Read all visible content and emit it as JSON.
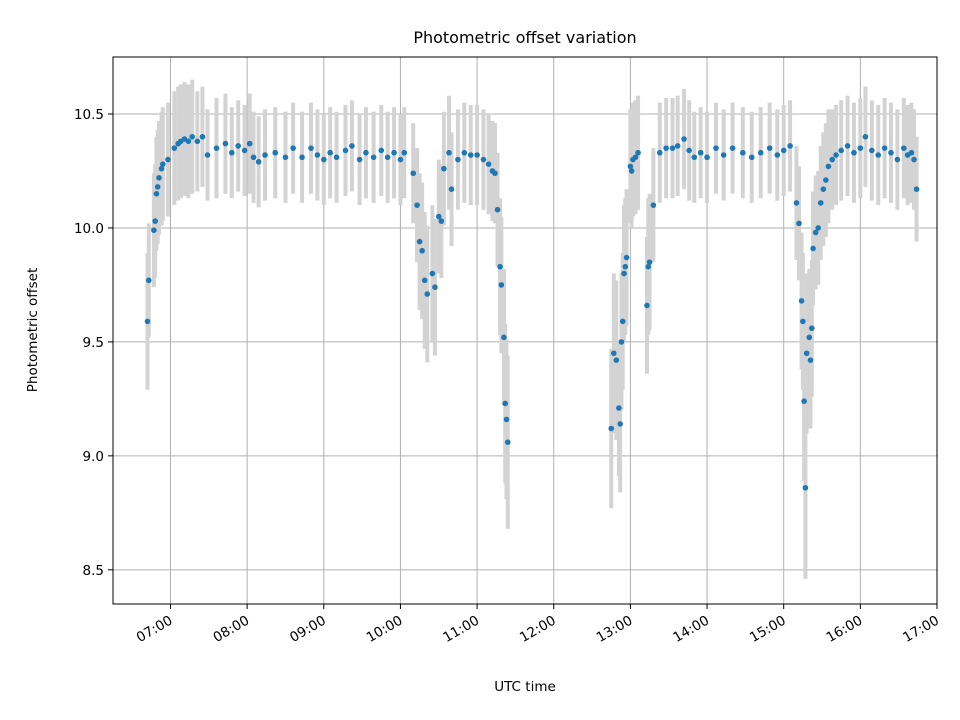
{
  "chart_data": {
    "type": "scatter",
    "title": "Photometric offset variation",
    "xlabel": "UTC time",
    "ylabel": "Photometric offset",
    "grid": true,
    "xlim": [
      "06:15",
      "17:00"
    ],
    "ylim": [
      8.35,
      10.75
    ],
    "x_ticks": [
      "07:00",
      "08:00",
      "09:00",
      "10:00",
      "11:00",
      "12:00",
      "13:00",
      "14:00",
      "15:00",
      "16:00",
      "17:00"
    ],
    "y_ticks": [
      "8.5",
      "9.0",
      "9.5",
      "10.0",
      "10.5"
    ],
    "colors": {
      "points": "#1f77b4",
      "error_bars": "#d3d3d3"
    },
    "series": [
      {
        "marker": "point",
        "error_bars": "vertical",
        "points": [
          [
            "06:42",
            9.59,
            0.3
          ],
          [
            "06:43",
            9.77,
            0.25
          ],
          [
            "06:47",
            9.99,
            0.25
          ],
          [
            "06:48",
            10.03,
            0.25
          ],
          [
            "06:49",
            10.15,
            0.25
          ],
          [
            "06:50",
            10.18,
            0.25
          ],
          [
            "06:51",
            10.22,
            0.25
          ],
          [
            "06:53",
            10.26,
            0.25
          ],
          [
            "06:54",
            10.28,
            0.25
          ],
          [
            "06:58",
            10.3,
            0.25
          ],
          [
            "07:03",
            10.35,
            0.25
          ],
          [
            "07:06",
            10.37,
            0.25
          ],
          [
            "07:08",
            10.38,
            0.25
          ],
          [
            "07:11",
            10.39,
            0.25
          ],
          [
            "07:14",
            10.38,
            0.25
          ],
          [
            "07:17",
            10.4,
            0.25
          ],
          [
            "07:21",
            10.38,
            0.22
          ],
          [
            "07:25",
            10.4,
            0.22
          ],
          [
            "07:29",
            10.32,
            0.2
          ],
          [
            "07:36",
            10.35,
            0.22
          ],
          [
            "07:43",
            10.37,
            0.22
          ],
          [
            "07:48",
            10.33,
            0.2
          ],
          [
            "07:53",
            10.36,
            0.2
          ],
          [
            "07:58",
            10.34,
            0.2
          ],
          [
            "08:02",
            10.37,
            0.22
          ],
          [
            "08:05",
            10.31,
            0.2
          ],
          [
            "08:09",
            10.29,
            0.2
          ],
          [
            "08:14",
            10.32,
            0.2
          ],
          [
            "08:22",
            10.33,
            0.2
          ],
          [
            "08:30",
            10.31,
            0.2
          ],
          [
            "08:36",
            10.35,
            0.2
          ],
          [
            "08:43",
            10.31,
            0.2
          ],
          [
            "08:50",
            10.35,
            0.2
          ],
          [
            "08:55",
            10.32,
            0.2
          ],
          [
            "09:00",
            10.3,
            0.2
          ],
          [
            "09:05",
            10.33,
            0.2
          ],
          [
            "09:10",
            10.31,
            0.2
          ],
          [
            "09:17",
            10.34,
            0.2
          ],
          [
            "09:22",
            10.36,
            0.2
          ],
          [
            "09:28",
            10.3,
            0.2
          ],
          [
            "09:33",
            10.33,
            0.2
          ],
          [
            "09:39",
            10.31,
            0.2
          ],
          [
            "09:45",
            10.34,
            0.2
          ],
          [
            "09:50",
            10.31,
            0.2
          ],
          [
            "09:55",
            10.33,
            0.2
          ],
          [
            "10:00",
            10.3,
            0.2
          ],
          [
            "10:03",
            10.33,
            0.2
          ],
          [
            "10:10",
            10.24,
            0.22
          ],
          [
            "10:13",
            10.1,
            0.25
          ],
          [
            "10:15",
            9.94,
            0.3
          ],
          [
            "10:17",
            9.9,
            0.3
          ],
          [
            "10:19",
            9.77,
            0.3
          ],
          [
            "10:21",
            9.71,
            0.3
          ],
          [
            "10:25",
            9.8,
            0.3
          ],
          [
            "10:27",
            9.74,
            0.3
          ],
          [
            "10:30",
            10.05,
            0.25
          ],
          [
            "10:32",
            10.03,
            0.25
          ],
          [
            "10:34",
            10.26,
            0.25
          ],
          [
            "10:38",
            10.33,
            0.25
          ],
          [
            "10:40",
            10.17,
            0.25
          ],
          [
            "10:45",
            10.3,
            0.22
          ],
          [
            "10:50",
            10.33,
            0.22
          ],
          [
            "10:55",
            10.32,
            0.22
          ],
          [
            "11:00",
            10.32,
            0.22
          ],
          [
            "11:05",
            10.3,
            0.22
          ],
          [
            "11:09",
            10.28,
            0.22
          ],
          [
            "11:12",
            10.25,
            0.22
          ],
          [
            "11:14",
            10.24,
            0.22
          ],
          [
            "11:16",
            10.08,
            0.25
          ],
          [
            "11:18",
            9.83,
            0.3
          ],
          [
            "11:19",
            9.75,
            0.3
          ],
          [
            "11:21",
            9.52,
            0.3
          ],
          [
            "11:22",
            9.23,
            0.35
          ],
          [
            "11:23",
            9.16,
            0.35
          ],
          [
            "11:24",
            9.06,
            0.38
          ],
          [
            "12:45",
            9.12,
            0.35
          ],
          [
            "12:47",
            9.45,
            0.35
          ],
          [
            "12:49",
            9.42,
            0.35
          ],
          [
            "12:51",
            9.21,
            0.3
          ],
          [
            "12:52",
            9.14,
            0.3
          ],
          [
            "12:53",
            9.5,
            0.3
          ],
          [
            "12:54",
            9.59,
            0.3
          ],
          [
            "12:55",
            9.8,
            0.3
          ],
          [
            "12:56",
            9.83,
            0.3
          ],
          [
            "12:57",
            9.87,
            0.3
          ],
          [
            "13:00",
            10.27,
            0.25
          ],
          [
            "13:01",
            10.25,
            0.25
          ],
          [
            "13:02",
            10.3,
            0.25
          ],
          [
            "13:04",
            10.31,
            0.25
          ],
          [
            "13:06",
            10.33,
            0.25
          ],
          [
            "13:13",
            9.66,
            0.3
          ],
          [
            "13:14",
            9.83,
            0.3
          ],
          [
            "13:15",
            9.85,
            0.3
          ],
          [
            "13:18",
            10.1,
            0.25
          ],
          [
            "13:23",
            10.33,
            0.22
          ],
          [
            "13:28",
            10.35,
            0.22
          ],
          [
            "13:33",
            10.35,
            0.22
          ],
          [
            "13:37",
            10.36,
            0.22
          ],
          [
            "13:42",
            10.39,
            0.22
          ],
          [
            "13:46",
            10.34,
            0.22
          ],
          [
            "13:50",
            10.31,
            0.2
          ],
          [
            "13:55",
            10.33,
            0.2
          ],
          [
            "14:00",
            10.31,
            0.2
          ],
          [
            "14:07",
            10.35,
            0.2
          ],
          [
            "14:13",
            10.32,
            0.2
          ],
          [
            "14:20",
            10.35,
            0.2
          ],
          [
            "14:28",
            10.33,
            0.2
          ],
          [
            "14:35",
            10.31,
            0.2
          ],
          [
            "14:42",
            10.33,
            0.2
          ],
          [
            "14:49",
            10.35,
            0.2
          ],
          [
            "14:55",
            10.32,
            0.2
          ],
          [
            "15:00",
            10.34,
            0.2
          ],
          [
            "15:05",
            10.36,
            0.2
          ],
          [
            "15:10",
            10.11,
            0.25
          ],
          [
            "15:12",
            10.02,
            0.25
          ],
          [
            "15:14",
            9.68,
            0.3
          ],
          [
            "15:15",
            9.59,
            0.3
          ],
          [
            "15:16",
            9.24,
            0.35
          ],
          [
            "15:17",
            8.86,
            0.4
          ],
          [
            "15:18",
            9.45,
            0.35
          ],
          [
            "15:20",
            9.52,
            0.3
          ],
          [
            "15:21",
            9.42,
            0.3
          ],
          [
            "15:22",
            9.56,
            0.3
          ],
          [
            "15:23",
            9.91,
            0.25
          ],
          [
            "15:25",
            9.98,
            0.25
          ],
          [
            "15:27",
            10.0,
            0.25
          ],
          [
            "15:29",
            10.11,
            0.25
          ],
          [
            "15:31",
            10.17,
            0.25
          ],
          [
            "15:33",
            10.21,
            0.25
          ],
          [
            "15:35",
            10.27,
            0.25
          ],
          [
            "15:38",
            10.3,
            0.22
          ],
          [
            "15:41",
            10.32,
            0.22
          ],
          [
            "15:45",
            10.34,
            0.22
          ],
          [
            "15:50",
            10.36,
            0.22
          ],
          [
            "15:55",
            10.33,
            0.22
          ],
          [
            "16:00",
            10.35,
            0.22
          ],
          [
            "16:04",
            10.4,
            0.22
          ],
          [
            "16:09",
            10.34,
            0.22
          ],
          [
            "16:14",
            10.32,
            0.22
          ],
          [
            "16:19",
            10.35,
            0.22
          ],
          [
            "16:24",
            10.33,
            0.22
          ],
          [
            "16:29",
            10.3,
            0.22
          ],
          [
            "16:34",
            10.35,
            0.22
          ],
          [
            "16:37",
            10.32,
            0.22
          ],
          [
            "16:40",
            10.33,
            0.22
          ],
          [
            "16:42",
            10.3,
            0.22
          ],
          [
            "16:44",
            10.17,
            0.23
          ]
        ]
      }
    ]
  }
}
